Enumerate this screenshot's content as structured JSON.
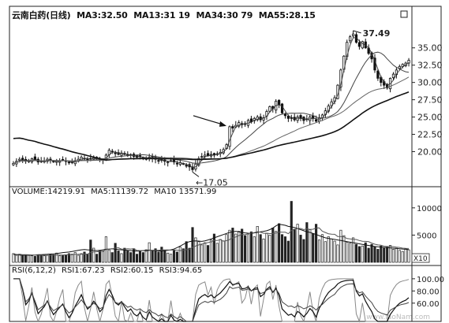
{
  "chart_data": [
    {
      "type": "candlestick",
      "title": "云南白药(日线)",
      "moving_averages": [
        {
          "name": "MA3",
          "label": "MA3:32.50",
          "value": 32.5
        },
        {
          "name": "MA13",
          "label": "MA13:31 19",
          "value": 31.19
        },
        {
          "name": "MA34",
          "label": "MA34:30 79",
          "value": 30.79
        },
        {
          "name": "MA55",
          "label": "MA55:28.15",
          "value": 28.15
        }
      ],
      "y_ticks": [
        "35.00",
        "32.50",
        "30.00",
        "27.50",
        "25.00",
        "22.50",
        "20.00"
      ],
      "ylim": [
        15.5,
        38.5
      ],
      "annotations": [
        {
          "text": "37.49",
          "value": 37.49,
          "kind": "high"
        },
        {
          "text": "17.05",
          "value": 17.05,
          "kind": "low"
        }
      ],
      "close_series": [
        18.3,
        18.6,
        18.9,
        18.8,
        18.6,
        18.7,
        19.0,
        18.8,
        18.5,
        18.6,
        18.7,
        18.9,
        18.7,
        18.5,
        18.6,
        18.7,
        18.8,
        18.6,
        18.4,
        18.5,
        18.7,
        18.9,
        19.2,
        19.0,
        18.8,
        18.9,
        19.1,
        19.0,
        18.8,
        18.9,
        19.5,
        20.2,
        20.0,
        19.7,
        19.6,
        19.8,
        19.6,
        19.4,
        19.5,
        19.3,
        19.2,
        19.3,
        19.1,
        19.0,
        19.2,
        19.0,
        18.9,
        18.7,
        18.8,
        18.6,
        18.5,
        18.7,
        18.5,
        18.3,
        18.4,
        18.2,
        17.9,
        17.8,
        17.4,
        18.2,
        19.0,
        19.3,
        19.5,
        19.4,
        19.6,
        19.5,
        19.7,
        19.9,
        20.3,
        21.0,
        23.6,
        23.4,
        23.8,
        24.2,
        23.9,
        24.0,
        24.5,
        24.3,
        24.8,
        25.0,
        24.6,
        24.9,
        25.8,
        26.5,
        26.2,
        27.3,
        26.8,
        25.6,
        25.2,
        24.8,
        24.9,
        24.6,
        25.0,
        24.8,
        24.5,
        24.7,
        25.0,
        24.8,
        24.4,
        24.9,
        25.3,
        25.9,
        26.6,
        27.2,
        27.8,
        29.6,
        31.8,
        33.8,
        35.8,
        36.6,
        37.0,
        35.8,
        35.2,
        35.9,
        35.0,
        34.2,
        33.4,
        31.8,
        30.6,
        30.0,
        29.6,
        29.2,
        30.6,
        31.2,
        31.8,
        32.3,
        32.6,
        32.8,
        33.2
      ]
    },
    {
      "type": "bar",
      "title": "VOLUME",
      "header": [
        {
          "name": "VOLUME",
          "label": "VOLUME:14219.91"
        },
        {
          "name": "MA5",
          "label": "MA5:11139.72"
        },
        {
          "name": "MA10",
          "label": "MA10 13571.99"
        }
      ],
      "y_ticks": [
        "10000",
        "5000"
      ],
      "unit_label": "X10",
      "ylim": [
        0,
        12000
      ],
      "values": [
        1600,
        1300,
        1500,
        1200,
        1400,
        1300,
        1200,
        1100,
        1300,
        1400,
        1200,
        1300,
        1500,
        1400,
        1700,
        1200,
        1300,
        1400,
        1600,
        1500,
        1800,
        1300,
        1600,
        1900,
        1500,
        4100,
        2600,
        1500,
        2200,
        2000,
        4700,
        2300,
        1800,
        3500,
        2100,
        1600,
        2600,
        2100,
        1800,
        2500,
        1500,
        2000,
        1800,
        2300,
        3600,
        2100,
        2500,
        1900,
        2800,
        2200,
        1700,
        1500,
        2200,
        1900,
        2800,
        2500,
        3800,
        2600,
        6400,
        4500,
        3800,
        3200,
        3600,
        3100,
        4100,
        5200,
        3500,
        4200,
        3900,
        5100,
        5900,
        6300,
        5200,
        5700,
        6100,
        4900,
        5200,
        5600,
        4700,
        6600,
        5100,
        4300,
        5300,
        5000,
        6300,
        5700,
        7100,
        5100,
        4700,
        3900,
        11200,
        6100,
        7000,
        5000,
        4200,
        7300,
        6000,
        5300,
        7000,
        4100,
        5100,
        3800,
        4700,
        4300,
        3900,
        3200,
        5900,
        4900,
        3700,
        3500,
        4500,
        3300,
        2900,
        3000,
        3600,
        2600,
        3300,
        2900,
        2400,
        3000,
        2600,
        2800,
        3100,
        2400,
        2600,
        2200,
        2000,
        2500,
        2300
      ],
      "ma5": [
        1450,
        1400,
        1350,
        1300,
        1350,
        1300,
        1320,
        1350,
        1400,
        1420,
        1450,
        1480,
        1520,
        1550,
        1600,
        1700,
        1800,
        1850,
        1900,
        2000,
        2100,
        2200,
        2300,
        2350,
        2300,
        2250,
        2200,
        2150,
        2200,
        2300,
        2400,
        2450,
        2500,
        2400,
        2350,
        2300,
        2250,
        2200,
        2150,
        2100,
        2050,
        2100,
        2150,
        2200,
        2250,
        2200,
        2150,
        2100,
        2100,
        2150,
        2200,
        2300,
        2450,
        2700,
        3000,
        3300,
        3600,
        3800,
        3900,
        3950,
        3900,
        3850,
        3950,
        4100,
        4300,
        4500,
        4700,
        4900,
        5100,
        5300,
        5500,
        5600,
        5700,
        5600,
        5500,
        5400,
        5350,
        5300,
        5400,
        5500,
        5600,
        5700,
        5800,
        6000,
        6300,
        6700,
        7000,
        6900,
        6800,
        6600,
        6500,
        6400,
        6200,
        6000,
        5800,
        5600,
        5500,
        5300,
        5100,
        4900,
        4700,
        4500,
        4400,
        4300,
        4200,
        4100,
        4000,
        3900,
        3800,
        3700,
        3600,
        3500,
        3400,
        3300,
        3200,
        3100,
        3000,
        2900,
        2850,
        2800,
        2750,
        2700,
        2650,
        2600,
        2550,
        2500,
        2450,
        2400,
        2350
      ]
    },
    {
      "type": "line",
      "title": "RSI(6,12,2)",
      "header": [
        {
          "name": "RSI",
          "label": "RSI(6,12,2)"
        },
        {
          "name": "RSI1",
          "label": "RSI1:67.23"
        },
        {
          "name": "RSI2",
          "label": "RSI2:60.15"
        },
        {
          "name": "RSI3",
          "label": "RSI3:94.65"
        }
      ],
      "y_ticks": [
        "100.00",
        "80.00",
        "60.00"
      ],
      "ylim": [
        30,
        105
      ]
    }
  ],
  "watermark": "www.laoNam.com"
}
